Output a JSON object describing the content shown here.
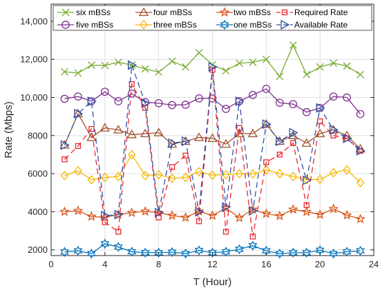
{
  "chart_data": {
    "type": "line",
    "xlabel": "T (Hour)",
    "ylabel": "Rate (Mbps)",
    "xlim": [
      0,
      24
    ],
    "ylim": [
      1700,
      14900
    ],
    "xticks": [
      0,
      4,
      8,
      12,
      16,
      20,
      24
    ],
    "xtick_labels": [
      "0",
      "4",
      "8",
      "12",
      "16",
      "20",
      "24"
    ],
    "yticks": [
      2000,
      4000,
      6000,
      8000,
      10000,
      12000,
      14000
    ],
    "ytick_labels": [
      "2000",
      "4000",
      "6000",
      "8000",
      "10,000",
      "12,000",
      "14,000"
    ],
    "grid": true,
    "legend_position": "top",
    "x": [
      1,
      2,
      3,
      4,
      5,
      6,
      7,
      8,
      9,
      10,
      11,
      12,
      13,
      14,
      15,
      16,
      17,
      18,
      19,
      20,
      21,
      22,
      23
    ],
    "series": [
      {
        "name": "six mBSs",
        "color": "#77ac30",
        "marker": "x",
        "dash": "solid",
        "values": [
          11350,
          11280,
          11700,
          11680,
          11850,
          11700,
          11500,
          11330,
          11900,
          11600,
          12350,
          11720,
          11400,
          11800,
          11850,
          12000,
          11100,
          12750,
          11200,
          11600,
          11800,
          11650,
          11200
        ]
      },
      {
        "name": "five mBSs",
        "color": "#7e2f8e",
        "marker": "circle",
        "dash": "solid",
        "values": [
          9930,
          10050,
          9800,
          10300,
          9800,
          10200,
          9750,
          9700,
          9600,
          9620,
          9950,
          9950,
          9400,
          9800,
          10130,
          10450,
          9720,
          9650,
          9230,
          9450,
          10050,
          10000,
          9130
        ]
      },
      {
        "name": "four mBSs",
        "color": "#a0522d",
        "marker": "triangle",
        "dash": "solid",
        "values": [
          7500,
          9150,
          7900,
          8400,
          8300,
          8050,
          8100,
          8150,
          7550,
          7700,
          7900,
          7850,
          7550,
          8100,
          8100,
          8600,
          7700,
          8000,
          7600,
          8100,
          8300,
          8000,
          7300
        ]
      },
      {
        "name": "three mBSs",
        "color": "#f5b800",
        "marker": "diamond",
        "dash": "solid",
        "values": [
          5900,
          6150,
          5680,
          5800,
          5850,
          7000,
          5900,
          5950,
          5750,
          5800,
          6100,
          5920,
          5950,
          6000,
          5980,
          6200,
          6000,
          5850,
          5680,
          5700,
          6050,
          6200,
          5530
        ]
      },
      {
        "name": "two mBSs",
        "color": "#d95319",
        "marker": "star",
        "dash": "solid",
        "values": [
          4000,
          4050,
          3750,
          3700,
          3850,
          3950,
          4020,
          3950,
          3800,
          3700,
          4020,
          3800,
          4200,
          3680,
          4120,
          3900,
          3780,
          4120,
          4000,
          3850,
          4150,
          3820,
          3620
        ]
      },
      {
        "name": "one mBSs",
        "color": "#0072bd",
        "marker": "hexagram",
        "dash": "solid",
        "values": [
          1890,
          1950,
          1800,
          2320,
          2150,
          1900,
          1850,
          1850,
          1880,
          1800,
          1970,
          1850,
          1900,
          2030,
          2220,
          1950,
          1800,
          1850,
          1850,
          1980,
          1800,
          1900,
          1950
        ]
      },
      {
        "name": "Required Rate",
        "color": "#e8262b",
        "marker": "square",
        "dash": "dashed",
        "values": [
          6750,
          7450,
          8350,
          3450,
          2950,
          10700,
          9450,
          3700,
          6350,
          6950,
          3500,
          11450,
          2950,
          8400,
          2700,
          6600,
          7000,
          7600,
          4350,
          8750,
          8000,
          7850,
          7200
        ]
      },
      {
        "name": "Available Rate",
        "color": "#3050a8",
        "marker": "triangle-right",
        "dash": "dashed",
        "values": [
          7500,
          9150,
          9800,
          3800,
          3850,
          11700,
          9700,
          3950,
          7600,
          7700,
          4000,
          11600,
          4250,
          9800,
          4050,
          8600,
          7700,
          8150,
          5650,
          9450,
          8300,
          7850,
          7200
        ]
      }
    ]
  }
}
